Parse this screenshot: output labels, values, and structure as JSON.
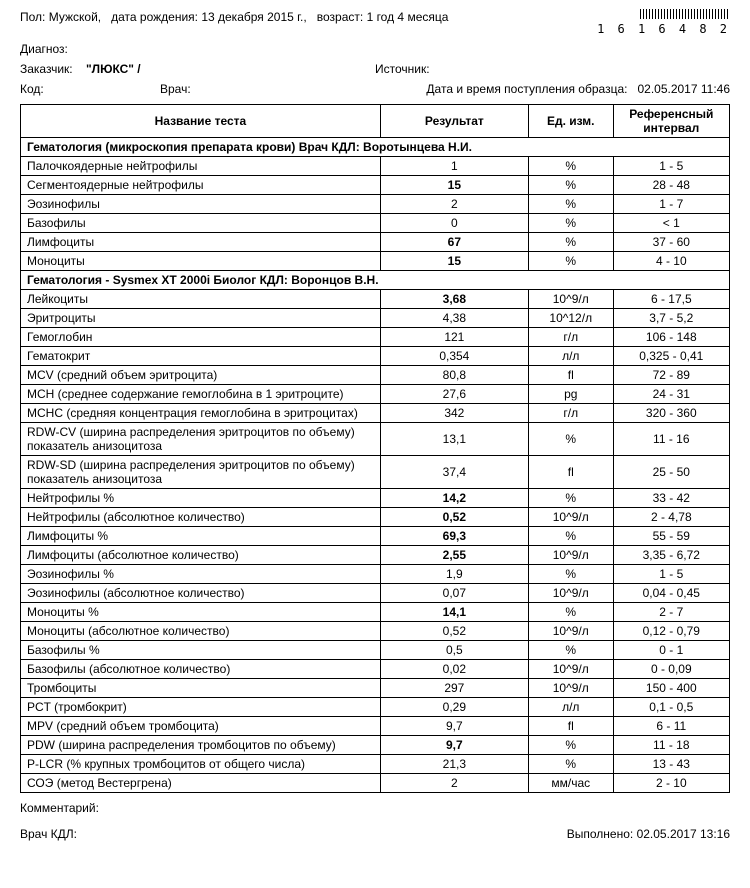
{
  "header": {
    "gender_label": "Пол:",
    "gender": "Мужской,",
    "dob_label": "дата рождения:",
    "dob": "13 декабря 2015 г.,",
    "age_label": "возраст:",
    "age": "1 год 4 месяца",
    "barcode": "1 6 1 6 4 8 2",
    "diagnosis_label": "Диагноз:",
    "customer_label": "Заказчик:",
    "customer": "\"ЛЮКС\" /",
    "source_label": "Источник:",
    "code_label": "Код:",
    "doctor_label": "Врач:",
    "sample_label": "Дата и время поступления образца:",
    "sample_time": "02.05.2017 11:46"
  },
  "table": {
    "columns": [
      "Название теста",
      "Результат",
      "Ед. изм.",
      "Референсный интервал"
    ],
    "sections": [
      {
        "title": "Гематология (микроскопия препарата крови) Врач КДЛ: Воротынцева Н.И.",
        "rows": [
          {
            "name": "Палочкоядерные нейтрофилы",
            "result": "1",
            "bold": false,
            "unit": "%",
            "ref": "1 - 5"
          },
          {
            "name": "Сегментоядерные нейтрофилы",
            "result": "15",
            "bold": true,
            "unit": "%",
            "ref": "28 - 48"
          },
          {
            "name": "Эозинофилы",
            "result": "2",
            "bold": false,
            "unit": "%",
            "ref": "1 - 7"
          },
          {
            "name": "Базофилы",
            "result": "0",
            "bold": false,
            "unit": "%",
            "ref": "< 1"
          },
          {
            "name": "Лимфоциты",
            "result": "67",
            "bold": true,
            "unit": "%",
            "ref": "37 - 60"
          },
          {
            "name": "Моноциты",
            "result": "15",
            "bold": true,
            "unit": "%",
            "ref": "4 - 10"
          }
        ]
      },
      {
        "title": "Гематология - Sysmex XT 2000i Биолог КДЛ: Воронцов В.Н.",
        "rows": [
          {
            "name": "Лейкоциты",
            "result": "3,68",
            "bold": true,
            "unit": "10^9/л",
            "ref": "6 - 17,5"
          },
          {
            "name": "Эритроциты",
            "result": "4,38",
            "bold": false,
            "unit": "10^12/л",
            "ref": "3,7 - 5,2"
          },
          {
            "name": "Гемоглобин",
            "result": "121",
            "bold": false,
            "unit": "г/л",
            "ref": "106 - 148"
          },
          {
            "name": "Гематокрит",
            "result": "0,354",
            "bold": false,
            "unit": "л/л",
            "ref": "0,325 - 0,41"
          },
          {
            "name": "MCV (средний объем эритроцита)",
            "result": "80,8",
            "bold": false,
            "unit": "fl",
            "ref": "72 - 89"
          },
          {
            "name": "MCH (среднее содержание гемоглобина в 1 эритроците)",
            "result": "27,6",
            "bold": false,
            "unit": "pg",
            "ref": "24 - 31"
          },
          {
            "name": "MCHC (средняя концентрация гемоглобина в эритроцитах)",
            "result": "342",
            "bold": false,
            "unit": "г/л",
            "ref": "320 - 360"
          },
          {
            "name": "RDW-CV (ширина распределения эритроцитов по объему) показатель анизоцитоза",
            "result": "13,1",
            "bold": false,
            "unit": "%",
            "ref": "11 - 16"
          },
          {
            "name": "RDW-SD (ширина распределения эритроцитов по объему) показатель анизоцитоза",
            "result": "37,4",
            "bold": false,
            "unit": "fl",
            "ref": "25 - 50"
          },
          {
            "name": "Нейтрофилы %",
            "result": "14,2",
            "bold": true,
            "unit": "%",
            "ref": "33 - 42"
          },
          {
            "name": "Нейтрофилы (абсолютное количество)",
            "result": "0,52",
            "bold": true,
            "unit": "10^9/л",
            "ref": "2 - 4,78"
          },
          {
            "name": "Лимфоциты %",
            "result": "69,3",
            "bold": true,
            "unit": "%",
            "ref": "55 - 59"
          },
          {
            "name": "Лимфоциты (абсолютное количество)",
            "result": "2,55",
            "bold": true,
            "unit": "10^9/л",
            "ref": "3,35 - 6,72"
          },
          {
            "name": "Эозинофилы %",
            "result": "1,9",
            "bold": false,
            "unit": "%",
            "ref": "1 - 5"
          },
          {
            "name": "Эозинофилы (абсолютное количество)",
            "result": "0,07",
            "bold": false,
            "unit": "10^9/л",
            "ref": "0,04 - 0,45"
          },
          {
            "name": "Моноциты %",
            "result": "14,1",
            "bold": true,
            "unit": "%",
            "ref": "2 - 7"
          },
          {
            "name": "Моноциты (абсолютное количество)",
            "result": "0,52",
            "bold": false,
            "unit": "10^9/л",
            "ref": "0,12 - 0,79"
          },
          {
            "name": "Базофилы %",
            "result": "0,5",
            "bold": false,
            "unit": "%",
            "ref": "0 - 1"
          },
          {
            "name": "Базофилы (абсолютное количество)",
            "result": "0,02",
            "bold": false,
            "unit": "10^9/л",
            "ref": "0 - 0,09"
          },
          {
            "name": "Тромбоциты",
            "result": "297",
            "bold": false,
            "unit": "10^9/л",
            "ref": "150 - 400"
          },
          {
            "name": "PCT (тромбокрит)",
            "result": "0,29",
            "bold": false,
            "unit": "л/л",
            "ref": "0,1 - 0,5"
          },
          {
            "name": "MPV (средний объем тромбоцита)",
            "result": "9,7",
            "bold": false,
            "unit": "fl",
            "ref": "6 - 11"
          },
          {
            "name": "PDW (ширина  распределения тромбоцитов по объему)",
            "result": "9,7",
            "bold": true,
            "unit": "%",
            "ref": "11 - 18"
          },
          {
            "name": "P-LCR (% крупных тромбоцитов от общего числа)",
            "result": "21,3",
            "bold": false,
            "unit": "%",
            "ref": "13 - 43"
          },
          {
            "name": "СОЭ (метод Вестергрена)",
            "result": "2",
            "bold": false,
            "unit": "мм/час",
            "ref": "2 - 10"
          }
        ]
      }
    ]
  },
  "footer": {
    "comment_label": "Комментарий:",
    "doctor_label": "Врач КДЛ:",
    "done_label": "Выполнено:",
    "done_time": "02.05.2017 13:16"
  }
}
